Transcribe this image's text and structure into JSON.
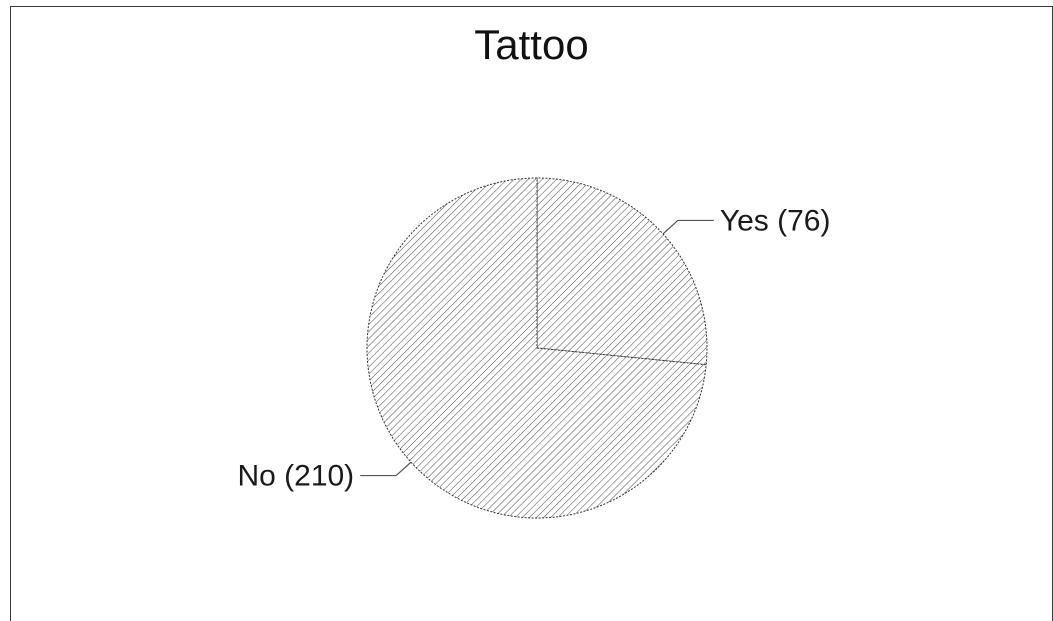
{
  "chart_data": {
    "type": "pie",
    "title": "Tattoo",
    "slices": [
      {
        "label": "Yes",
        "value": 76,
        "display": "Yes (76)"
      },
      {
        "label": "No",
        "value": 210,
        "display": "No (210)"
      }
    ],
    "start_angle_deg": 90,
    "direction": "clockwise",
    "fill_pattern": "diagonal-hatch",
    "colors": {
      "stroke": "#333333",
      "hatch": "#555555",
      "background": "#ffffff"
    }
  }
}
